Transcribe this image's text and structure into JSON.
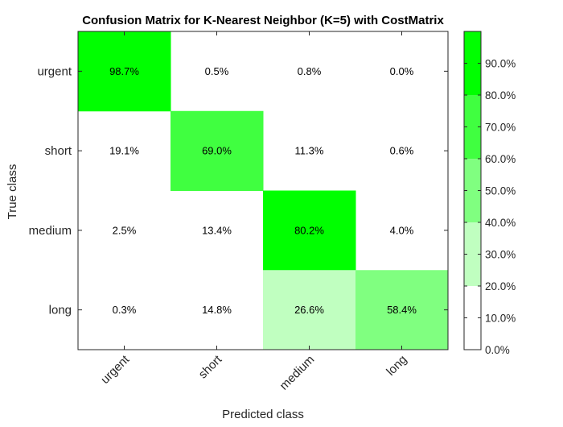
{
  "chart_data": {
    "type": "heatmap",
    "title": "Confusion Matrix for K-Nearest Neighbor (K=5) with CostMatrix",
    "xlabel": "Predicted class",
    "ylabel": "True class",
    "row_labels": [
      "urgent",
      "short",
      "medium",
      "long"
    ],
    "col_labels": [
      "urgent",
      "short",
      "medium",
      "long"
    ],
    "values": [
      [
        98.7,
        0.5,
        0.8,
        0.0
      ],
      [
        19.1,
        69.0,
        11.3,
        0.6
      ],
      [
        2.5,
        13.4,
        80.2,
        4.0
      ],
      [
        0.3,
        14.8,
        26.6,
        58.4
      ]
    ],
    "cell_labels": [
      [
        "98.7%",
        "0.5%",
        "0.8%",
        "0.0%"
      ],
      [
        "19.1%",
        "69.0%",
        "11.3%",
        "0.6%"
      ],
      [
        "2.5%",
        "13.4%",
        "80.2%",
        "4.0%"
      ],
      [
        "0.3%",
        "14.8%",
        "26.6%",
        "58.4%"
      ]
    ],
    "colorbar": {
      "range": [
        0,
        100
      ],
      "ticks": [
        0,
        10,
        20,
        30,
        40,
        50,
        60,
        70,
        80,
        90
      ],
      "tick_labels": [
        "0.0%",
        "10.0%",
        "20.0%",
        "30.0%",
        "40.0%",
        "50.0%",
        "60.0%",
        "70.0%",
        "80.0%",
        "90.0%"
      ],
      "bins": [
        {
          "from": 0,
          "to": 20,
          "color": "#ffffff"
        },
        {
          "from": 20,
          "to": 40,
          "color": "#c0ffc0"
        },
        {
          "from": 40,
          "to": 60,
          "color": "#80ff80"
        },
        {
          "from": 60,
          "to": 80,
          "color": "#40ff40"
        },
        {
          "from": 80,
          "to": 100,
          "color": "#00ff00"
        }
      ]
    },
    "grid": false,
    "legend": "colorbar-right"
  }
}
